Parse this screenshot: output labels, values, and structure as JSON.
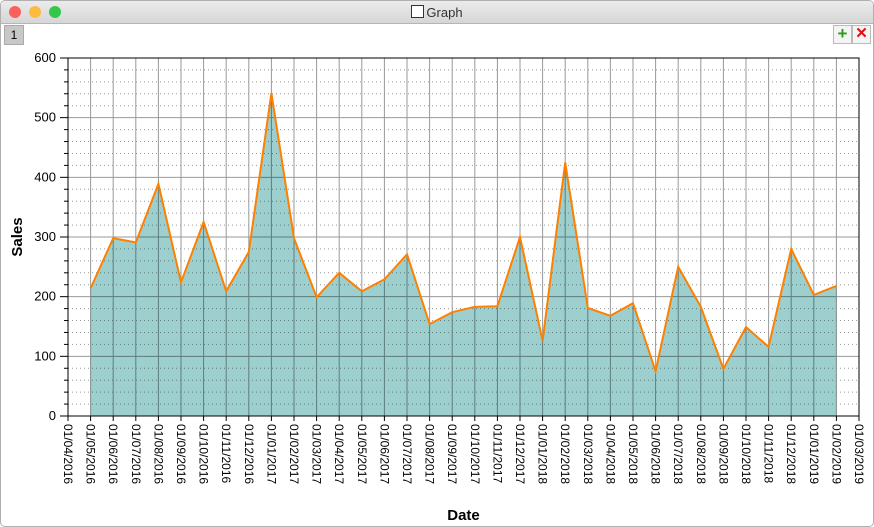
{
  "window": {
    "title": "Graph",
    "tab_label": "1",
    "add_icon": "green-plus-icon",
    "close_icon": "red-x-icon"
  },
  "chart_data": {
    "type": "area",
    "xlabel": "Date",
    "ylabel": "Sales",
    "ylim": [
      0,
      600
    ],
    "yticks": [
      0,
      100,
      200,
      300,
      400,
      500,
      600
    ],
    "x_tick_labels": [
      "01/04/2016",
      "01/05/2016",
      "01/06/2016",
      "01/07/2016",
      "01/08/2016",
      "01/09/2016",
      "01/10/2016",
      "01/11/2016",
      "01/12/2016",
      "01/01/2017",
      "01/02/2017",
      "01/03/2017",
      "01/04/2017",
      "01/05/2017",
      "01/06/2017",
      "01/07/2017",
      "01/08/2017",
      "01/09/2017",
      "01/10/2017",
      "01/11/2017",
      "01/12/2017",
      "01/01/2018",
      "01/02/2018",
      "01/03/2018",
      "01/04/2018",
      "01/05/2018",
      "01/06/2018",
      "01/07/2018",
      "01/08/2018",
      "01/09/2018",
      "01/10/2018",
      "01/11/2018",
      "01/12/2018",
      "01/01/2019",
      "01/02/2019",
      "01/03/2019"
    ],
    "x": [
      "01/05/2016",
      "01/06/2016",
      "01/07/2016",
      "01/08/2016",
      "01/09/2016",
      "01/10/2016",
      "01/11/2016",
      "01/12/2016",
      "01/01/2017",
      "01/02/2017",
      "01/03/2017",
      "01/04/2017",
      "01/05/2017",
      "01/06/2017",
      "01/07/2017",
      "01/08/2017",
      "01/09/2017",
      "01/10/2017",
      "01/11/2017",
      "01/12/2017",
      "01/01/2018",
      "01/02/2018",
      "01/03/2018",
      "01/04/2018",
      "01/05/2018",
      "01/06/2018",
      "01/07/2018",
      "01/08/2018",
      "01/09/2018",
      "01/10/2018",
      "01/11/2018",
      "01/12/2018",
      "01/01/2019",
      "01/02/2019"
    ],
    "values": [
      214,
      298,
      291,
      389,
      224,
      325,
      209,
      275,
      541,
      298,
      199,
      240,
      209,
      229,
      271,
      154,
      174,
      183,
      184,
      300,
      126,
      425,
      181,
      168,
      189,
      75,
      250,
      183,
      79,
      149,
      116,
      280,
      203,
      218
    ],
    "grid": true,
    "colors": {
      "fill": "#99cccc",
      "line": "#ff8000"
    }
  }
}
